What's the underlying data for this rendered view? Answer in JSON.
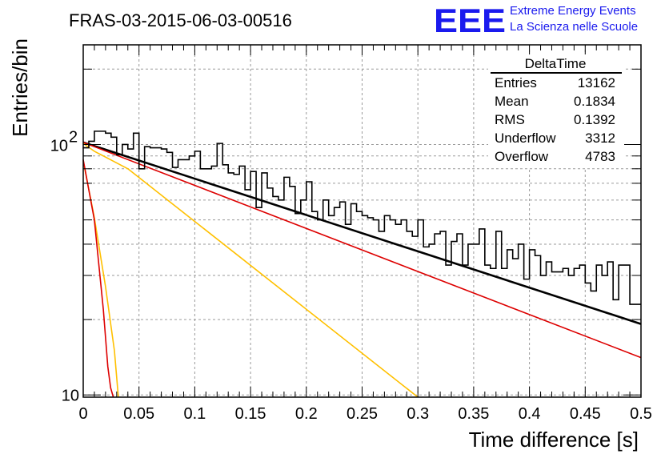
{
  "chart_data": {
    "type": "line",
    "title": "FRAS-03-2015-06-03-00516",
    "xlabel": "Time difference [s]",
    "ylabel": "Entries/bin",
    "xlim": [
      0,
      0.5
    ],
    "ylim": [
      9.8,
      250
    ],
    "yscale": "log",
    "grid": true,
    "x_ticks": [
      0,
      0.05,
      0.1,
      0.15,
      0.2,
      0.25,
      0.3,
      0.35,
      0.4,
      0.45,
      0.5
    ],
    "x_tick_labels": [
      "0",
      "0.05",
      "0.1",
      "0.15",
      "0.2",
      "0.25",
      "0.3",
      "0.35",
      "0.4",
      "0.45",
      "0.5"
    ],
    "y_tick_labels": [
      {
        "value": 10,
        "label": "10"
      },
      {
        "value": 100,
        "label": "10",
        "exponent": "2"
      }
    ],
    "histogram": {
      "name": "DeltaTime",
      "bin_width": 0.005,
      "values": [
        97,
        103,
        113,
        113,
        111,
        107,
        91,
        100,
        96,
        111,
        80,
        98,
        97,
        97,
        96,
        93,
        81,
        87,
        87,
        90,
        94,
        80,
        80,
        82,
        101,
        83,
        77,
        76,
        82,
        66,
        78,
        56,
        77,
        67,
        62,
        60,
        74,
        68,
        53,
        60,
        71,
        54,
        50,
        60,
        52,
        56,
        59,
        48,
        58,
        54,
        52,
        51,
        50,
        45,
        52,
        50,
        48,
        50,
        45,
        43,
        50,
        39,
        40,
        44,
        45,
        33,
        41,
        44,
        33,
        40,
        40,
        46,
        33,
        32,
        45,
        32,
        38,
        35,
        40,
        29,
        38,
        36,
        30,
        34,
        31,
        31,
        32,
        30,
        32,
        33,
        28,
        26,
        33,
        30,
        34,
        24,
        33,
        33,
        23,
        23
      ]
    },
    "stats_box": {
      "title": "DeltaTime",
      "rows": [
        {
          "label": "Entries",
          "value": "13162"
        },
        {
          "label": "Mean",
          "value": "0.1834"
        },
        {
          "label": "RMS",
          "value": "0.1392"
        },
        {
          "label": "Underflow",
          "value": "3312"
        },
        {
          "label": "Overflow",
          "value": "4783"
        }
      ]
    },
    "curves": [
      {
        "color": "#000000",
        "points": [
          [
            0,
            102
          ],
          [
            0.5,
            19.2
          ]
        ]
      },
      {
        "color": "#dd0000",
        "points": [
          [
            0,
            102
          ],
          [
            0.5,
            14.1
          ]
        ]
      },
      {
        "color": "#ffc000",
        "points": [
          [
            0,
            101
          ],
          [
            0.01,
            94
          ],
          [
            0.04,
            80
          ],
          [
            0.3,
            9.8
          ]
        ]
      },
      {
        "color": "#ffc000",
        "points": [
          [
            0,
            86
          ],
          [
            0.01,
            51
          ],
          [
            0.02,
            27
          ],
          [
            0.028,
            15
          ],
          [
            0.0315,
            9.8
          ]
        ]
      },
      {
        "color": "#dd0000",
        "points": [
          [
            0,
            87
          ],
          [
            0.01,
            50
          ],
          [
            0.018,
            22
          ],
          [
            0.022,
            13
          ],
          [
            0.0245,
            10.7
          ],
          [
            0.027,
            9.8
          ]
        ]
      }
    ]
  },
  "logo": {
    "mark": "EEE",
    "line1": "Extreme Energy Events",
    "line2": "La Scienza nelle Scuole"
  }
}
